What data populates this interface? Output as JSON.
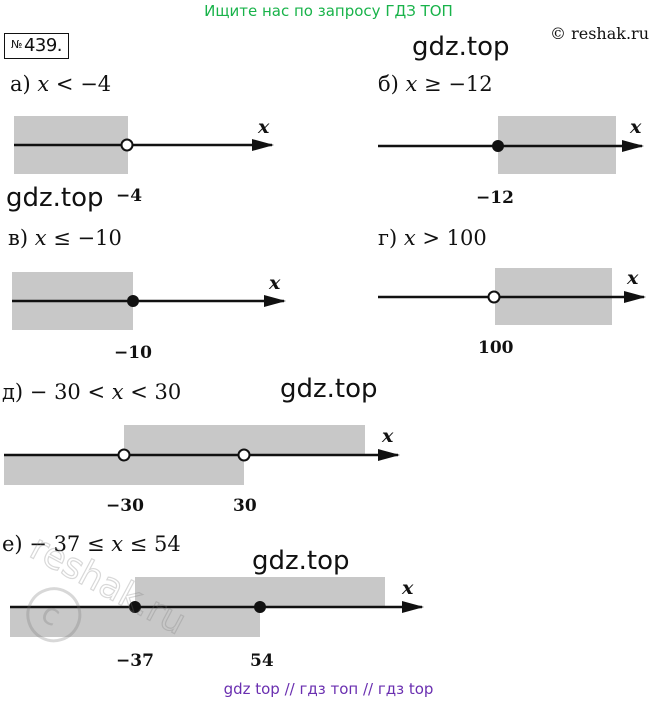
{
  "banner": "Ищите нас по запросу ГДЗ ТОП",
  "copyright": "© reshak.ru",
  "task_number_prefix": "№",
  "task_number": "439.",
  "watermarks": [
    "gdz.top",
    "gdz.top",
    "gdz.top",
    "gdz.top"
  ],
  "axis_variable": "x",
  "problems": [
    {
      "label": "а) x < −4",
      "prefix": "а)",
      "expr_var": "x",
      "expr_rest": " < −4",
      "tick": "−4"
    },
    {
      "label": "б) x ≥ −12",
      "prefix": "б)",
      "expr_var": "x",
      "expr_rest": " ≥ −12",
      "tick": "−12"
    },
    {
      "label": "в) x ≤ −10",
      "prefix": "в)",
      "expr_var": "x",
      "expr_rest": " ≤ −10",
      "tick": "−10"
    },
    {
      "label": "г) x > 100",
      "prefix": "г)",
      "expr_var": "x",
      "expr_rest": " > 100",
      "tick": "100"
    },
    {
      "label": "д) − 30 < x < 30",
      "prefix": "д) − 30 < ",
      "expr_var": "x",
      "expr_rest": " < 30",
      "ticks": [
        "−30",
        "30"
      ]
    },
    {
      "label": "е) − 37 ≤ x ≤ 54",
      "prefix": "е) − 37 ≤ ",
      "expr_var": "x",
      "expr_rest": " ≤ 54",
      "ticks": [
        "−37",
        "54"
      ]
    }
  ],
  "footer": "gdz top  //  гдз топ  //  гдз top",
  "colors": {
    "shade": "#c8c8c8",
    "banner": "#19b34a",
    "footer": "#6a2fb0"
  }
}
